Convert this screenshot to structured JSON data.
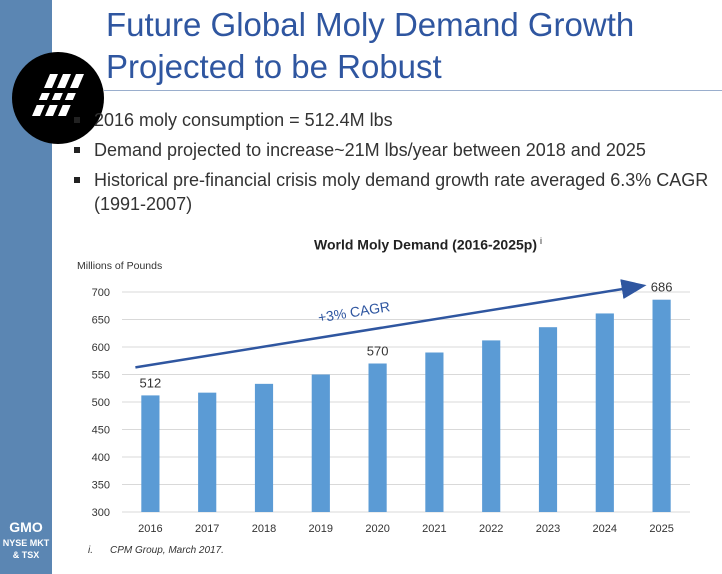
{
  "slide": {
    "title_line1": "Future Global Moly Demand Growth",
    "title_line2": "Projected to be Robust",
    "bullets": [
      "2016 moly consumption = 512.4M lbs",
      "Demand projected to increase~21M lbs/year between 2018 and 2025",
      "Historical pre-financial crisis moly demand growth rate averaged 6.3% CAGR (1991-2007)"
    ],
    "footnote_mark": "i.",
    "footnote_text": "CPM Group, March 2017.",
    "ticker_name": "GMO",
    "exchange_line1": "NYSE MKT",
    "exchange_line2": "& TSX"
  },
  "colors": {
    "sidebar": "#5b86b3",
    "title": "#2f56a0",
    "bar": "#5b9bd5",
    "arrow": "#2f56a0"
  },
  "chart_data": {
    "type": "bar",
    "title": "World Moly Demand (2016-2025p)",
    "title_superscript": "i",
    "ylabel": "Millions of Pounds",
    "xlabel": "",
    "categories": [
      "2016",
      "2017",
      "2018",
      "2019",
      "2020",
      "2021",
      "2022",
      "2023",
      "2024",
      "2025"
    ],
    "values": [
      512,
      517,
      533,
      550,
      570,
      590,
      612,
      636,
      661,
      686
    ],
    "data_labels": {
      "2016": "512",
      "2020": "570",
      "2025": "686"
    },
    "ylim": [
      300,
      700
    ],
    "yticks": [
      300,
      350,
      400,
      450,
      500,
      550,
      600,
      650,
      700
    ],
    "grid": true,
    "annotation": "+3% CAGR"
  }
}
